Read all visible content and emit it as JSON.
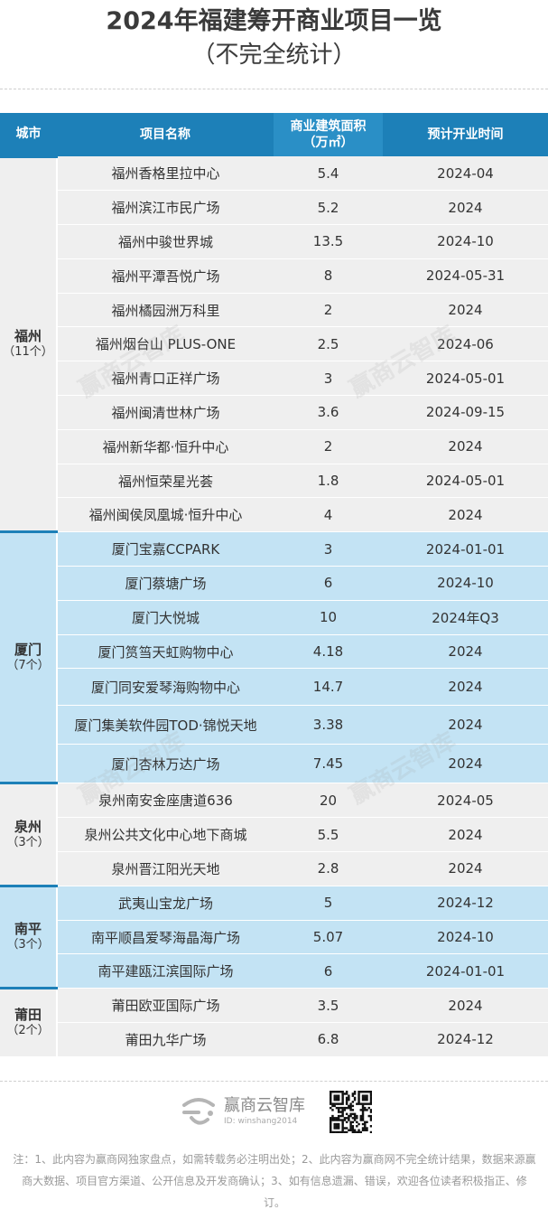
{
  "header": {
    "title": "2024年福建筹开商业项目一览",
    "subtitle": "（不完全统计）"
  },
  "table": {
    "columns": [
      "城市",
      "项目名称",
      "商业建筑面积",
      "（万㎡）",
      "预计开业时间"
    ],
    "groups": [
      {
        "city": "福州",
        "count": "（11个）",
        "rows": [
          {
            "name": "福州香格里拉中心",
            "area": "5.4",
            "open": "2024-04"
          },
          {
            "name": "福州滨江市民广场",
            "area": "5.2",
            "open": "2024"
          },
          {
            "name": "福州中骏世界城",
            "area": "13.5",
            "open": "2024-10"
          },
          {
            "name": "福州平潭吾悦广场",
            "area": "8",
            "open": "2024-05-31"
          },
          {
            "name": "福州橘园洲万科里",
            "area": "2",
            "open": "2024"
          },
          {
            "name": "福州烟台山 PLUS-ONE",
            "area": "2.5",
            "open": "2024-06"
          },
          {
            "name": "福州青口正祥广场",
            "area": "3",
            "open": "2024-05-01"
          },
          {
            "name": "福州闽清世林广场",
            "area": "3.6",
            "open": "2024-09-15"
          },
          {
            "name": "福州新华都·恒升中心",
            "area": "2",
            "open": "2024"
          },
          {
            "name": "福州恒荣星光荟",
            "area": "1.8",
            "open": "2024-05-01"
          },
          {
            "name": "福州闽侯凤凰城·恒升中心",
            "area": "4",
            "open": "2024"
          }
        ]
      },
      {
        "city": "厦门",
        "count": "（7个）",
        "rows": [
          {
            "name": "厦门宝嘉CCPARK",
            "area": "3",
            "open": "2024-01-01"
          },
          {
            "name": "厦门蔡塘广场",
            "area": "6",
            "open": "2024-10"
          },
          {
            "name": "厦门大悦城",
            "area": "10",
            "open": "2024年Q3"
          },
          {
            "name": "厦门筼筜天虹购物中心",
            "area": "4.18",
            "open": "2024"
          },
          {
            "name": "厦门同安爱琴海购物中心",
            "area": "14.7",
            "open": "2024"
          },
          {
            "name": "厦门集美软件园TOD·锦悦天地",
            "area": "3.38",
            "open": "2024"
          },
          {
            "name": "厦门杏林万达广场",
            "area": "7.45",
            "open": "2024"
          }
        ]
      },
      {
        "city": "泉州",
        "count": "（3个）",
        "rows": [
          {
            "name": "泉州南安金座唐道636",
            "area": "20",
            "open": "2024-05"
          },
          {
            "name": "泉州公共文化中心地下商城",
            "area": "5.5",
            "open": "2024"
          },
          {
            "name": "泉州晋江阳光天地",
            "area": "2.8",
            "open": "2024"
          }
        ]
      },
      {
        "city": "南平",
        "count": "（3个）",
        "rows": [
          {
            "name": "武夷山宝龙广场",
            "area": "5",
            "open": "2024-12"
          },
          {
            "name": "南平顺昌爱琴海晶海广场",
            "area": "5.07",
            "open": "2024-10"
          },
          {
            "name": "南平建瓯江滨国际广场",
            "area": "6",
            "open": "2024-01-01"
          }
        ]
      },
      {
        "city": "莆田",
        "count": "（2个）",
        "rows": [
          {
            "name": "莆田欧亚国际广场",
            "area": "3.5",
            "open": "2024"
          },
          {
            "name": "莆田九华广场",
            "area": "6.8",
            "open": "2024-12"
          }
        ]
      }
    ]
  },
  "watermark": "赢商云智库",
  "brand": {
    "name": "赢商云智库",
    "id": "ID: winshang2014"
  },
  "note": "注：1、此内容为赢商网独家盘点，如需转载务必注明出处；2、此内容为赢商网不完全统计结果，数据来源赢商大数据、项目官方渠道、公开信息及开发商确认；3、如有信息遗漏、错误，欢迎各位读者积极指正、修订。",
  "colors": {
    "header_bg": "#1d80b8",
    "row_grey": "#efefef",
    "row_blue": "#c3e3f4"
  }
}
